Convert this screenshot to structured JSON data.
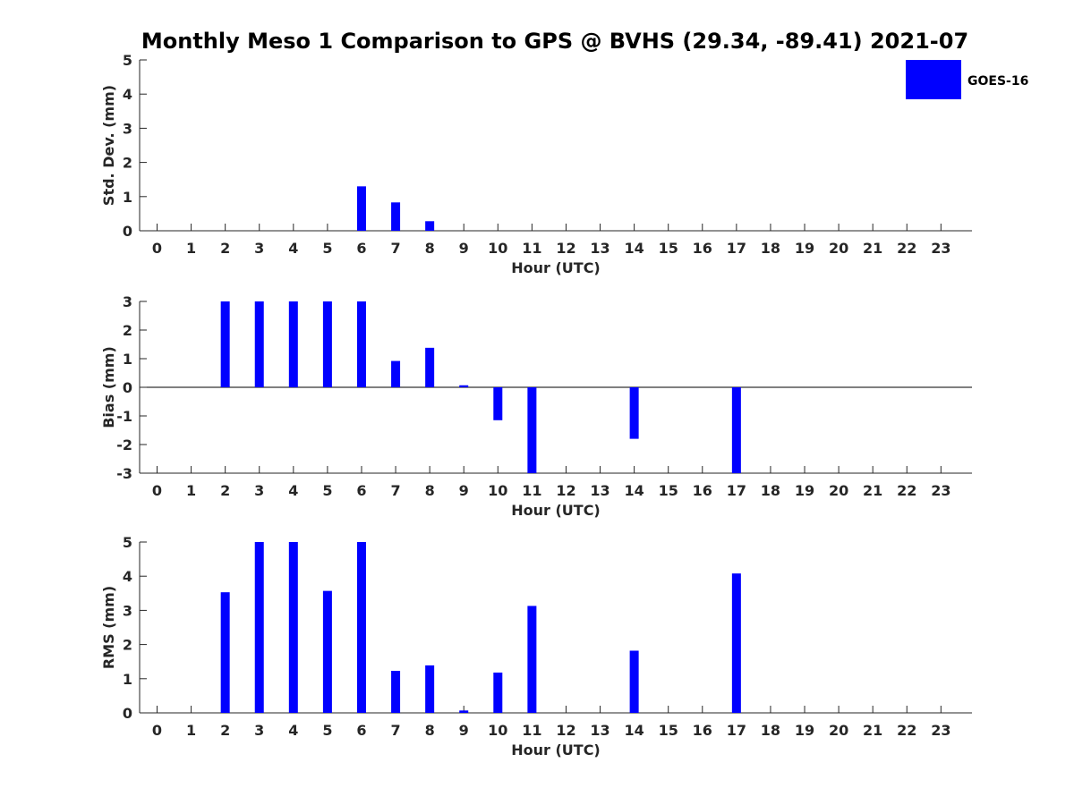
{
  "chart_data": {
    "title": "Monthly Meso 1 Comparison to GPS @ BVHS (29.34, -89.41) 2021-07",
    "type": "bar",
    "legend": {
      "entries": [
        "GOES-16"
      ],
      "color": "#0000ff",
      "placement": "top-right"
    },
    "categories": [
      "0",
      "1",
      "2",
      "3",
      "4",
      "5",
      "6",
      "7",
      "8",
      "9",
      "10",
      "11",
      "12",
      "13",
      "14",
      "15",
      "16",
      "17",
      "18",
      "19",
      "20",
      "21",
      "22",
      "23"
    ],
    "panels": [
      {
        "id": "std",
        "ylabel": "Std. Dev. (mm)",
        "xlabel": "Hour (UTC)",
        "ylim": [
          0,
          5
        ],
        "yticks": [
          "0",
          "1",
          "2",
          "3",
          "4",
          "5"
        ],
        "zero_line": false,
        "values": [
          0,
          0,
          0,
          0,
          0,
          0,
          1.3,
          0.83,
          0.28,
          0,
          0,
          0,
          0,
          0,
          0,
          0,
          0,
          0,
          0,
          0,
          0,
          0,
          0,
          0
        ]
      },
      {
        "id": "bias",
        "ylabel": "Bias (mm)",
        "xlabel": "Hour (UTC)",
        "ylim": [
          -3,
          3
        ],
        "yticks": [
          "-3",
          "-2",
          "-1",
          "0",
          "1",
          "2",
          "3"
        ],
        "zero_line": true,
        "values": [
          0,
          0,
          3,
          3,
          3,
          3,
          3,
          0.92,
          1.38,
          0.07,
          -1.15,
          -3,
          0,
          0,
          -1.8,
          0,
          0,
          -3,
          0,
          0,
          0,
          0,
          0,
          0
        ]
      },
      {
        "id": "rms",
        "ylabel": "RMS (mm)",
        "xlabel": "Hour (UTC)",
        "ylim": [
          0,
          5
        ],
        "yticks": [
          "0",
          "1",
          "2",
          "3",
          "4",
          "5"
        ],
        "zero_line": false,
        "values": [
          0,
          0,
          3.53,
          5,
          5,
          3.57,
          5,
          1.23,
          1.39,
          0.07,
          1.18,
          3.13,
          0,
          0,
          1.82,
          0,
          0,
          4.08,
          0,
          0,
          0,
          0,
          0,
          0
        ]
      }
    ]
  }
}
